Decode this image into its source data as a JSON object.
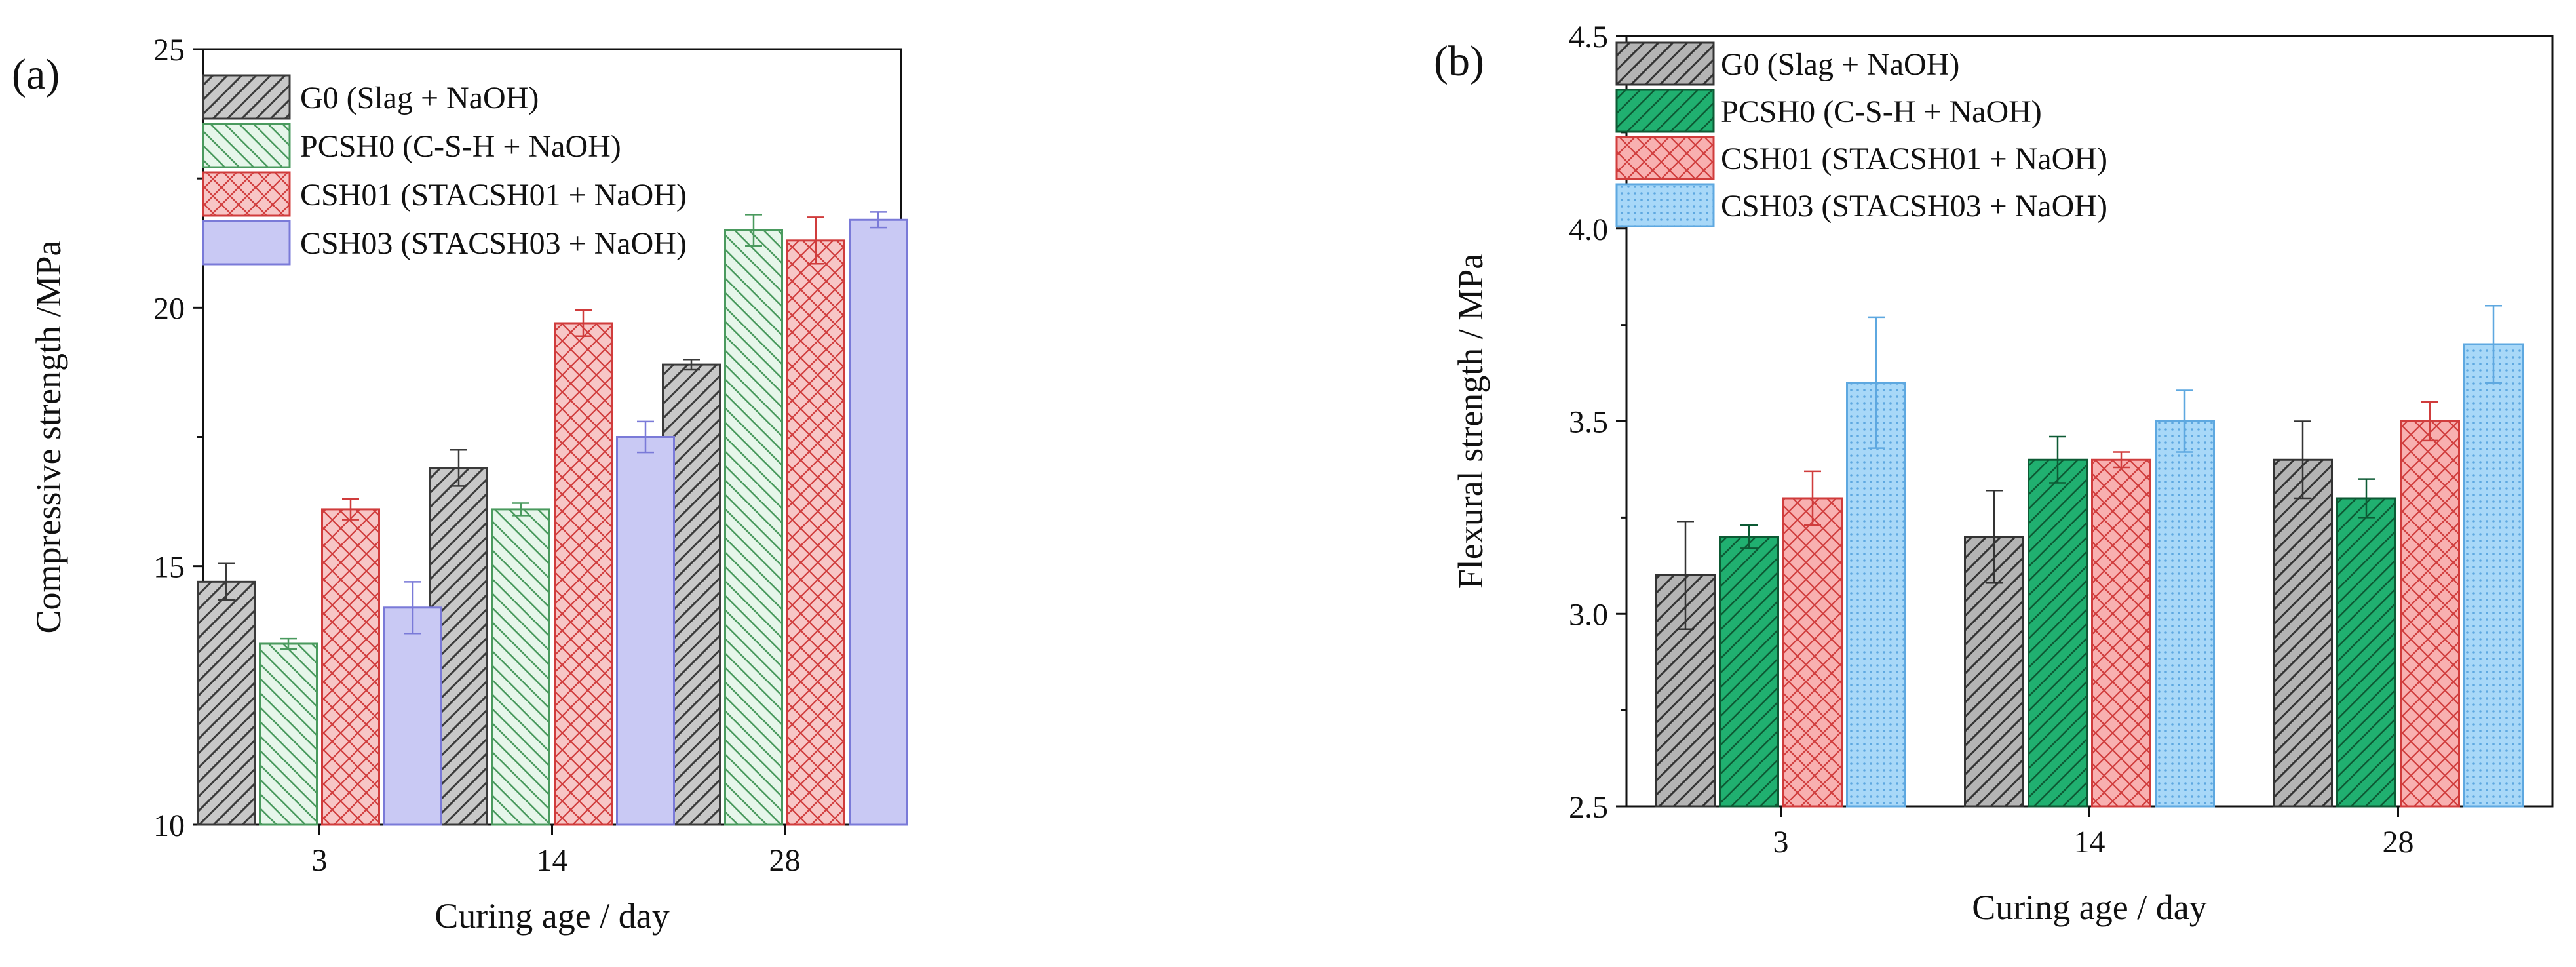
{
  "figure": {
    "panels": [
      "(a)",
      "(b)"
    ]
  },
  "chart_data": [
    {
      "type": "bar",
      "panel_label": "(a)",
      "categories": [
        "3",
        "14",
        "28"
      ],
      "xlabel": "Curing age / day",
      "ylabel": "Compressive strength /MPa",
      "ylim": [
        10,
        25
      ],
      "yticks": [
        "10",
        "15",
        "20",
        "25"
      ],
      "legend_position": "top-left",
      "series": [
        {
          "name": "G0 (Slag + NaOH)",
          "values": [
            14.7,
            16.9,
            18.9
          ],
          "errors": [
            0.35,
            0.35,
            0.1
          ],
          "fill": "#c8c8c8",
          "stroke": "#3a3a3a",
          "hatch": "diag-right"
        },
        {
          "name": "PCSH0 (C-S-H + NaOH)",
          "values": [
            13.5,
            16.1,
            21.5
          ],
          "errors": [
            0.1,
            0.12,
            0.3
          ],
          "fill": "#e6f6ea",
          "stroke": "#4a9a5e",
          "hatch": "diag-left"
        },
        {
          "name": "CSH01 (STACSH01 + NaOH)",
          "values": [
            16.1,
            19.7,
            21.3
          ],
          "errors": [
            0.2,
            0.25,
            0.45
          ],
          "fill": "#f7c6c6",
          "stroke": "#d03c3c",
          "hatch": "cross"
        },
        {
          "name": "CSH03 (STACSH03 + NaOH)",
          "values": [
            14.2,
            17.5,
            21.7
          ],
          "errors": [
            0.5,
            0.3,
            0.15
          ],
          "fill": "#c9c9f4",
          "stroke": "#7a7ad8",
          "hatch": "none"
        }
      ]
    },
    {
      "type": "bar",
      "panel_label": "(b)",
      "categories": [
        "3",
        "14",
        "28"
      ],
      "xlabel": "Curing age / day",
      "ylabel": "Flexural strength / MPa",
      "ylim": [
        2.5,
        4.5
      ],
      "yticks": [
        "2.5",
        "3.0",
        "3.5",
        "4.0",
        "4.5"
      ],
      "legend_position": "top-left",
      "series": [
        {
          "name": "G0 (Slag + NaOH)",
          "values": [
            3.1,
            3.2,
            3.4
          ],
          "errors": [
            0.14,
            0.12,
            0.1
          ],
          "fill": "#b4b4b4",
          "stroke": "#333333",
          "hatch": "diag-right"
        },
        {
          "name": "PCSH0 (C-S-H + NaOH)",
          "values": [
            3.2,
            3.4,
            3.3
          ],
          "errors": [
            0.03,
            0.06,
            0.05
          ],
          "fill": "#20b070",
          "stroke": "#0d5a34",
          "hatch": "diag-right"
        },
        {
          "name": "CSH01 (STACSH01 + NaOH)",
          "values": [
            3.3,
            3.4,
            3.5
          ],
          "errors": [
            0.07,
            0.02,
            0.05
          ],
          "fill": "#f8b0b0",
          "stroke": "#d03c3c",
          "hatch": "cross"
        },
        {
          "name": "CSH03 (STACSH03 + NaOH)",
          "values": [
            3.6,
            3.5,
            3.7
          ],
          "errors": [
            0.17,
            0.08,
            0.1
          ],
          "fill": "#a8d8f8",
          "stroke": "#5ea8e0",
          "hatch": "dots"
        }
      ]
    }
  ]
}
